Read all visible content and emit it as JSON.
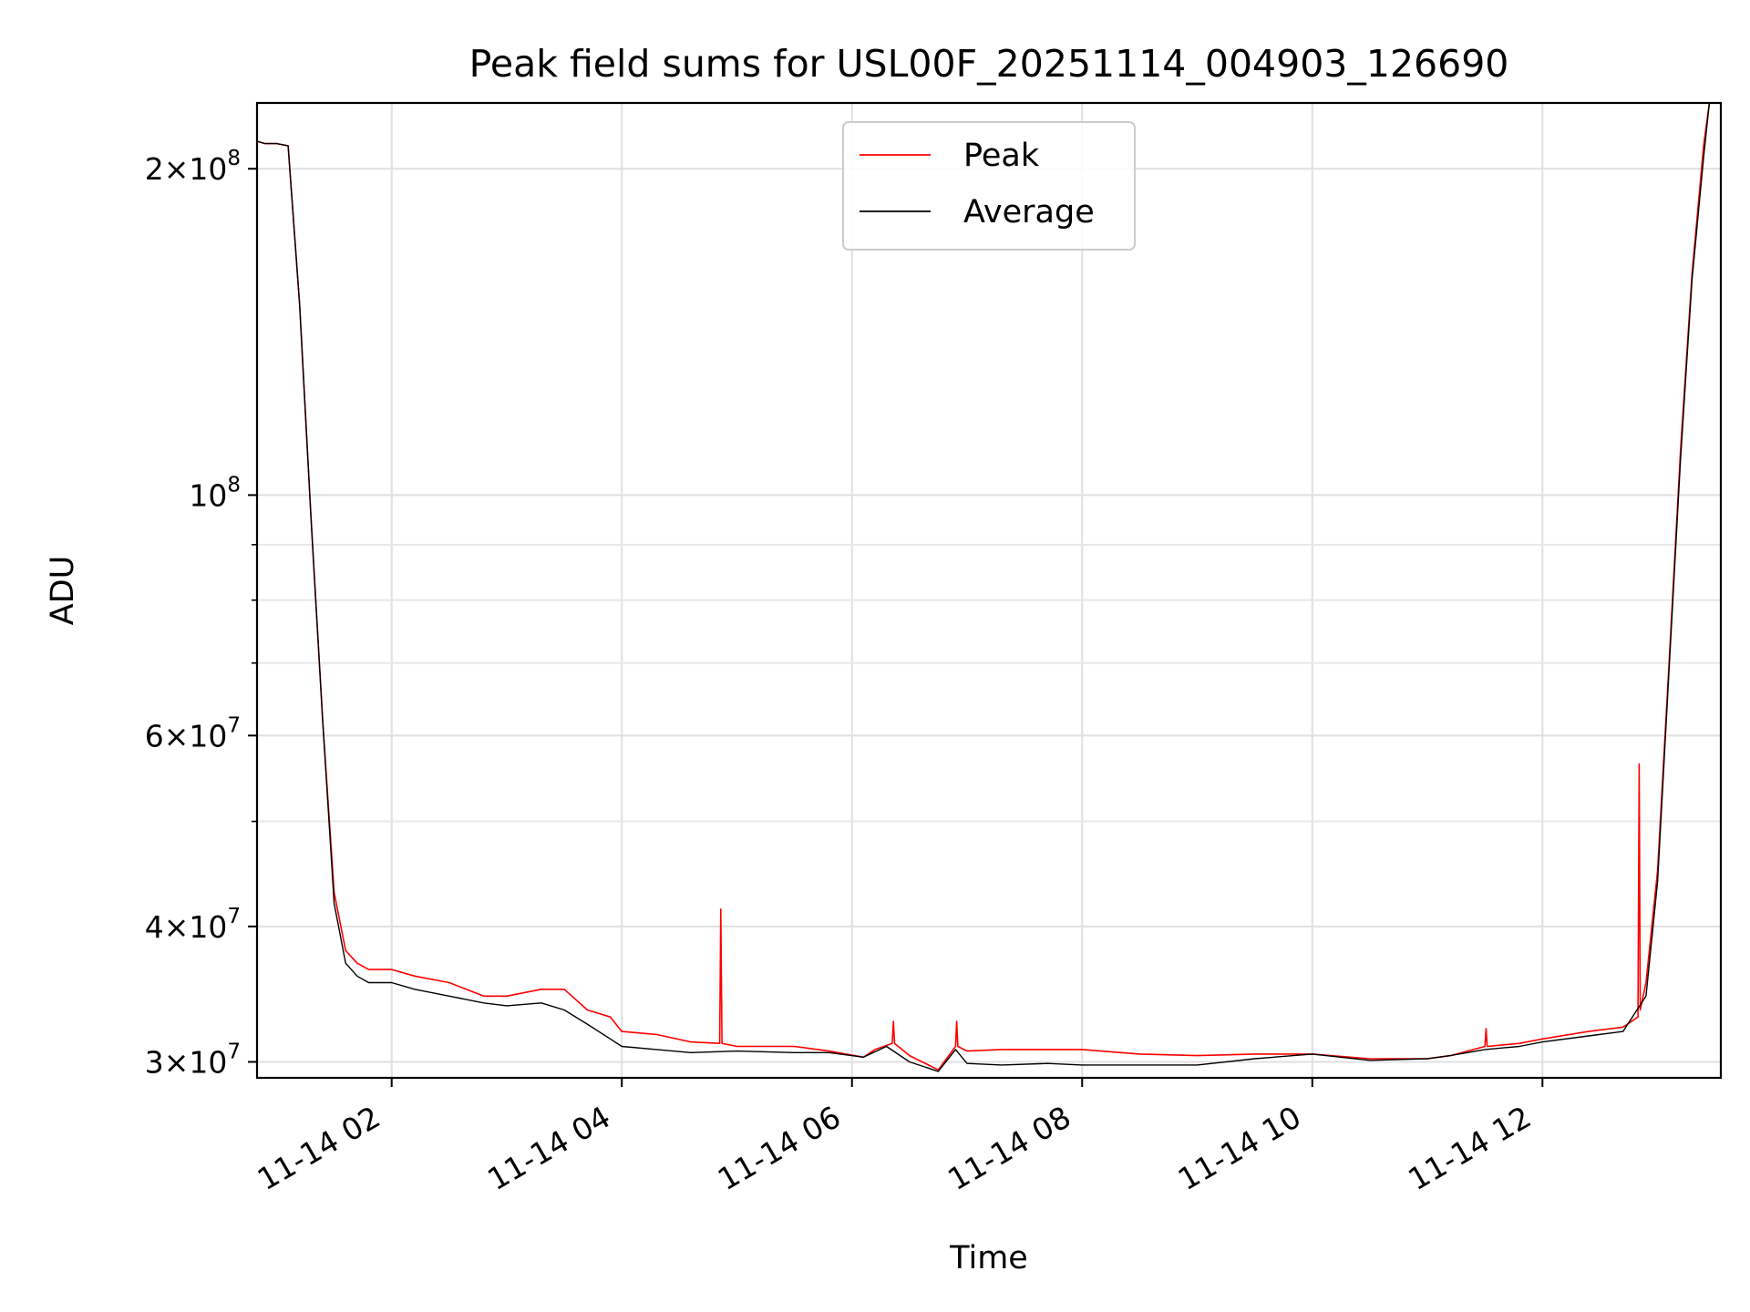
{
  "chart_data": {
    "type": "line",
    "title": "Peak field sums for USL00F_20251114_004903_126690",
    "xlabel": "Time",
    "ylabel": "ADU",
    "yscale": "log",
    "x_unit": "hours since 11-14 00:00",
    "xlim": [
      0.83,
      13.55
    ],
    "ylim": [
      29000000,
      230000000
    ],
    "x_ticks": [
      {
        "value": 2,
        "label": "11-14 02"
      },
      {
        "value": 4,
        "label": "11-14 04"
      },
      {
        "value": 6,
        "label": "11-14 06"
      },
      {
        "value": 8,
        "label": "11-14 08"
      },
      {
        "value": 10,
        "label": "11-14 10"
      },
      {
        "value": 12,
        "label": "11-14 12"
      }
    ],
    "y_ticks": [
      {
        "value": 30000000,
        "mant": "3",
        "exp": "7"
      },
      {
        "value": 40000000,
        "mant": "4",
        "exp": "7"
      },
      {
        "value": 60000000,
        "mant": "6",
        "exp": "7"
      },
      {
        "value": 100000000,
        "mant": "",
        "exp": "8"
      },
      {
        "value": 200000000,
        "mant": "2",
        "exp": "8"
      }
    ],
    "y_minor_ticks": [
      50000000,
      70000000,
      80000000,
      90000000
    ],
    "grid": true,
    "legend": {
      "position": "top-center",
      "entries": [
        {
          "name": "Peak",
          "color": "#ff0000"
        },
        {
          "name": "Average",
          "color": "#000000"
        }
      ]
    },
    "series": [
      {
        "name": "Peak",
        "color": "#ff0000",
        "x": [
          0.83,
          0.9,
          1.0,
          1.1,
          1.2,
          1.3,
          1.4,
          1.5,
          1.6,
          1.7,
          1.8,
          2.0,
          2.2,
          2.5,
          2.8,
          3.0,
          3.3,
          3.5,
          3.7,
          3.9,
          4.0,
          4.3,
          4.6,
          4.85,
          4.86,
          4.87,
          5.0,
          5.5,
          5.8,
          6.1,
          6.2,
          6.35,
          6.36,
          6.37,
          6.5,
          6.75,
          6.9,
          6.91,
          6.92,
          7.0,
          7.3,
          7.7,
          8.0,
          8.5,
          9.0,
          9.5,
          10.0,
          10.5,
          11.0,
          11.2,
          11.5,
          11.51,
          11.52,
          11.8,
          12.0,
          12.4,
          12.7,
          12.83,
          12.84,
          12.85,
          12.9,
          13.0,
          13.1,
          13.2,
          13.3,
          13.4,
          13.45,
          13.55
        ],
        "y": [
          212000000,
          211000000,
          211000000,
          210000000,
          150000000,
          95000000,
          62000000,
          43000000,
          38000000,
          37000000,
          36500000,
          36500000,
          36000000,
          35500000,
          34500000,
          34500000,
          35000000,
          35000000,
          33500000,
          33000000,
          32000000,
          31800000,
          31300000,
          31200000,
          41500000,
          31200000,
          31000000,
          31000000,
          30700000,
          30300000,
          30800000,
          31200000,
          32700000,
          31200000,
          30400000,
          29500000,
          31000000,
          32700000,
          31000000,
          30700000,
          30800000,
          30800000,
          30800000,
          30500000,
          30400000,
          30500000,
          30500000,
          30200000,
          30200000,
          30400000,
          31000000,
          32200000,
          31000000,
          31200000,
          31500000,
          32000000,
          32300000,
          33000000,
          56500000,
          33500000,
          35500000,
          45000000,
          70000000,
          110000000,
          160000000,
          210000000,
          230000000,
          250000000
        ]
      },
      {
        "name": "Average",
        "color": "#000000",
        "x": [
          0.83,
          0.9,
          1.0,
          1.1,
          1.2,
          1.3,
          1.4,
          1.5,
          1.6,
          1.7,
          1.8,
          2.0,
          2.2,
          2.5,
          2.8,
          3.0,
          3.3,
          3.5,
          3.7,
          3.9,
          4.0,
          4.3,
          4.6,
          5.0,
          5.5,
          5.8,
          6.1,
          6.3,
          6.5,
          6.75,
          6.9,
          7.0,
          7.3,
          7.7,
          8.0,
          8.5,
          9.0,
          9.5,
          10.0,
          10.5,
          11.0,
          11.2,
          11.5,
          11.8,
          12.0,
          12.4,
          12.7,
          12.9,
          13.0,
          13.1,
          13.2,
          13.3,
          13.4,
          13.45,
          13.55
        ],
        "y": [
          212000000,
          211000000,
          211000000,
          210000000,
          150000000,
          95000000,
          62000000,
          42000000,
          37000000,
          36000000,
          35500000,
          35500000,
          35000000,
          34500000,
          34000000,
          33800000,
          34000000,
          33500000,
          32500000,
          31500000,
          31000000,
          30800000,
          30600000,
          30700000,
          30600000,
          30600000,
          30300000,
          31000000,
          30000000,
          29400000,
          30800000,
          29900000,
          29800000,
          29900000,
          29800000,
          29800000,
          29800000,
          30200000,
          30500000,
          30100000,
          30200000,
          30400000,
          30800000,
          31000000,
          31300000,
          31700000,
          32000000,
          34500000,
          44000000,
          69000000,
          108000000,
          158000000,
          205000000,
          230000000,
          250000000
        ]
      }
    ]
  }
}
